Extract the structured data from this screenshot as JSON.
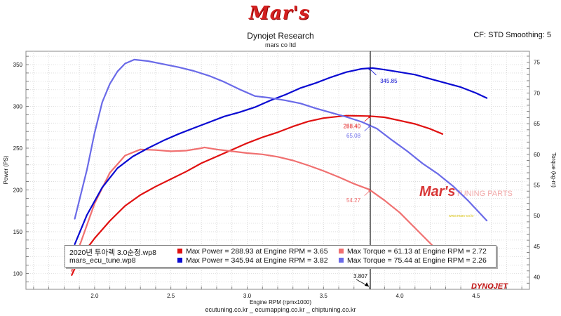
{
  "header": {
    "logo_text": "Mar's",
    "title": "Dynojet Research",
    "subtitle": "mars co ltd",
    "cf_label": "CF: STD Smoothing: 5"
  },
  "footer": "ecutuning.co.kr _ ecumapping.co.kr _ chiptuning.co.kr",
  "watermark": {
    "logo": "Mar's",
    "text": "TUNING PARTS",
    "small_text": "www.mars-co.kr"
  },
  "dynojet_logo": "DYNOJET",
  "colors": {
    "power_stock": "#e01010",
    "torque_stock": "#f07070",
    "power_tuned": "#0a0ad2",
    "torque_tuned": "#6a6ae8",
    "cursor": "#000000"
  },
  "chart_data": {
    "type": "line",
    "title": "Dynojet Research",
    "subtitle": "mars co ltd",
    "xlabel": "Engine RPM (rpmx1000)",
    "ylabel_left": "Power (PS)",
    "ylabel_right": "Torque (kg-m)",
    "xlim": [
      1.55,
      4.85
    ],
    "ylim_left": [
      81,
      366
    ],
    "ylim_right": [
      38,
      76.8
    ],
    "x_ticks": [
      "2.0",
      "2.5",
      "3.0",
      "3.5",
      "4.0",
      "4.5"
    ],
    "y_left_ticks": [
      "100",
      "150",
      "200",
      "250",
      "300",
      "350"
    ],
    "y_right_ticks": [
      "40",
      "45",
      "50",
      "55",
      "60",
      "65",
      "70",
      "75"
    ],
    "cursor": {
      "x": 3.807,
      "label": "3.807"
    },
    "series": [
      {
        "name": "Max Power = 288.93 at Engine RPM = 3.65",
        "file": "2020년 투아렉 3.0순정.wp8",
        "axis": "left",
        "color": "#e01010",
        "cursor_value": "288.40",
        "x": [
          1.85,
          1.9,
          2.0,
          2.1,
          2.2,
          2.3,
          2.4,
          2.5,
          2.6,
          2.7,
          2.8,
          2.9,
          3.0,
          3.1,
          3.2,
          3.3,
          3.4,
          3.5,
          3.6,
          3.65,
          3.7,
          3.8,
          3.9,
          4.0,
          4.1,
          4.2,
          4.28
        ],
        "y": [
          98,
          118,
          142,
          163,
          181,
          194,
          204,
          213,
          222,
          232,
          240,
          248,
          256,
          263,
          269,
          276,
          282,
          286,
          288,
          288.93,
          288.7,
          288.4,
          287,
          283,
          279,
          273,
          267
        ]
      },
      {
        "name": "Max Torque = 61.13 at Engine RPM = 2.72",
        "file": "2020년 투아렉 3.0순정.wp8",
        "axis": "right",
        "color": "#f07070",
        "cursor_value": "54.27",
        "x": [
          1.85,
          1.9,
          2.0,
          2.1,
          2.2,
          2.3,
          2.4,
          2.5,
          2.6,
          2.7,
          2.72,
          2.8,
          2.9,
          3.0,
          3.1,
          3.2,
          3.3,
          3.4,
          3.5,
          3.6,
          3.7,
          3.8,
          3.9,
          4.0,
          4.1,
          4.2,
          4.28
        ],
        "y": [
          41,
          45,
          52,
          57,
          59.8,
          60.8,
          60.7,
          60.5,
          60.6,
          61.0,
          61.13,
          60.8,
          60.5,
          60.2,
          60.0,
          59.6,
          59.0,
          58.2,
          57.3,
          56.3,
          55.2,
          54.27,
          52.5,
          50.5,
          48.0,
          45.5,
          43.5
        ]
      },
      {
        "name": "Max Power = 345.94 at Engine RPM = 3.82",
        "file": "mars_ecu_tune.wp8",
        "axis": "left",
        "color": "#0a0ad2",
        "cursor_value": "345.85",
        "x": [
          1.87,
          1.95,
          2.05,
          2.15,
          2.25,
          2.35,
          2.45,
          2.55,
          2.65,
          2.75,
          2.85,
          2.95,
          3.05,
          3.15,
          3.25,
          3.35,
          3.45,
          3.55,
          3.65,
          3.75,
          3.82,
          3.9,
          4.0,
          4.1,
          4.2,
          4.3,
          4.4,
          4.5,
          4.57
        ],
        "y": [
          135,
          170,
          203,
          226,
          240,
          250,
          259,
          267,
          274,
          281,
          288,
          293,
          299,
          307,
          314,
          322,
          328,
          335,
          341,
          345,
          345.94,
          344,
          341,
          338,
          333,
          328,
          323,
          316,
          310
        ]
      },
      {
        "name": "Max Torque = 75.44 at Engine RPM = 2.26",
        "file": "mars_ecu_tune.wp8",
        "axis": "right",
        "color": "#6a6ae8",
        "cursor_value": "65.08",
        "x": [
          1.87,
          1.95,
          2.0,
          2.05,
          2.1,
          2.15,
          2.2,
          2.26,
          2.35,
          2.45,
          2.55,
          2.65,
          2.75,
          2.85,
          2.95,
          3.05,
          3.15,
          3.25,
          3.35,
          3.45,
          3.55,
          3.65,
          3.75,
          3.85,
          3.95,
          4.05,
          4.15,
          4.25,
          4.35,
          4.45,
          4.57
        ],
        "y": [
          49.5,
          57.5,
          63.5,
          68.5,
          71.5,
          73.5,
          74.8,
          75.44,
          75.2,
          74.7,
          74.2,
          73.6,
          72.8,
          71.8,
          70.6,
          69.5,
          69.2,
          68.8,
          68.3,
          67.5,
          66.8,
          66.1,
          65.3,
          64.2,
          62.3,
          60.5,
          58.5,
          56.8,
          54.8,
          52.4,
          49.2
        ]
      }
    ]
  }
}
